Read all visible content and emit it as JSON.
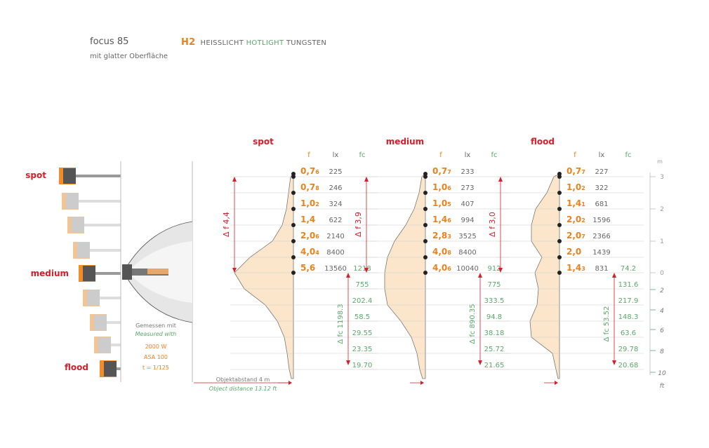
{
  "header": {
    "product": "focus 85",
    "subtitle": "mit glatter Oberfläche",
    "code": "H2",
    "lamp_de": "HEISSLICHT",
    "lamp_en": "HOTLIGHT",
    "lamp_type": "TUNGSTEN"
  },
  "lamp_labels": {
    "spot": "spot",
    "medium": "medium",
    "flood": "flood"
  },
  "measurement": {
    "de": "Gemessen mit",
    "en": "Measured with",
    "power": "2000 W",
    "asa": "ASA 100",
    "shutter": "t = 1/125"
  },
  "distance": {
    "de": "Objektabstand  4 m",
    "en": "Object distance 13.12 ft"
  },
  "colors": {
    "orange": "#e8821e",
    "green": "#5aa86a",
    "red": "#d61f2a",
    "fill": "#fbe6cc",
    "grey": "#666666"
  },
  "units": {
    "m": "m",
    "ft": "ft"
  },
  "scale_m": [
    "3",
    "2",
    "1",
    "0"
  ],
  "scale_ft": [
    "2",
    "4",
    "6",
    "8",
    "10"
  ],
  "col_headers": {
    "f": "f",
    "lx": "lx",
    "fc": "fc"
  },
  "panels": [
    {
      "title": "spot",
      "delta_f": "Δ f 4,4",
      "delta_fc": "Δ fc 1198.3",
      "f": [
        [
          "0,7",
          "6"
        ],
        [
          "0,7",
          "8"
        ],
        [
          "1,0",
          "2"
        ],
        [
          "1,4",
          ""
        ],
        [
          "2,0",
          "6"
        ],
        [
          "4,0",
          "4"
        ],
        [
          "5,6",
          ""
        ]
      ],
      "lx": [
        "225",
        "246",
        "324",
        "622",
        "2140",
        "8400",
        "13560"
      ],
      "fc_zero": "1218",
      "fc": [
        "755",
        "202.4",
        "58.5",
        "29.55",
        "23.35",
        "19.70"
      ],
      "widths_upper": [
        0,
        4,
        7,
        10,
        16,
        30,
        62,
        84
      ],
      "widths_lower": [
        84,
        70,
        40,
        23,
        13,
        9,
        6,
        3
      ]
    },
    {
      "title": "medium",
      "delta_f": "Δ f 3,9",
      "delta_fc": "Δ fc 890.35",
      "f": [
        [
          "0,7",
          "7"
        ],
        [
          "1,0",
          "6"
        ],
        [
          "1,0",
          "5"
        ],
        [
          "1,4",
          "6"
        ],
        [
          "2,8",
          "3"
        ],
        [
          "4,0",
          "8"
        ],
        [
          "4,0",
          "6"
        ]
      ],
      "lx": [
        "233",
        "273",
        "407",
        "994",
        "3525",
        "8400",
        "10040"
      ],
      "fc_zero": "912",
      "fc": [
        "775",
        "333.5",
        "94.8",
        "38.18",
        "25.72",
        "21.65"
      ],
      "widths_upper": [
        0,
        5,
        9,
        16,
        28,
        44,
        54,
        58
      ],
      "widths_lower": [
        58,
        58,
        54,
        35,
        20,
        12,
        8,
        4
      ]
    },
    {
      "title": "flood",
      "delta_f": "Δ f 3,0",
      "delta_fc": "Δ fc 53.52",
      "f": [
        [
          "0,7",
          "7"
        ],
        [
          "1,0",
          "2"
        ],
        [
          "1,4",
          "1"
        ],
        [
          "2,0",
          "2"
        ],
        [
          "2,0",
          "7"
        ],
        [
          "2,0",
          ""
        ],
        [
          "1,4",
          "3"
        ]
      ],
      "lx": [
        "227",
        "322",
        "681",
        "1596",
        "2366",
        "1439",
        "831"
      ],
      "fc_zero": "74.2",
      "fc": [
        "131.6",
        "217.9",
        "148.3",
        "63.6",
        "29.78",
        "20.68"
      ],
      "widths_upper": [
        0,
        8,
        18,
        34,
        40,
        40,
        25,
        35
      ],
      "widths_lower": [
        35,
        30,
        32,
        42,
        40,
        10,
        5,
        2
      ]
    }
  ]
}
